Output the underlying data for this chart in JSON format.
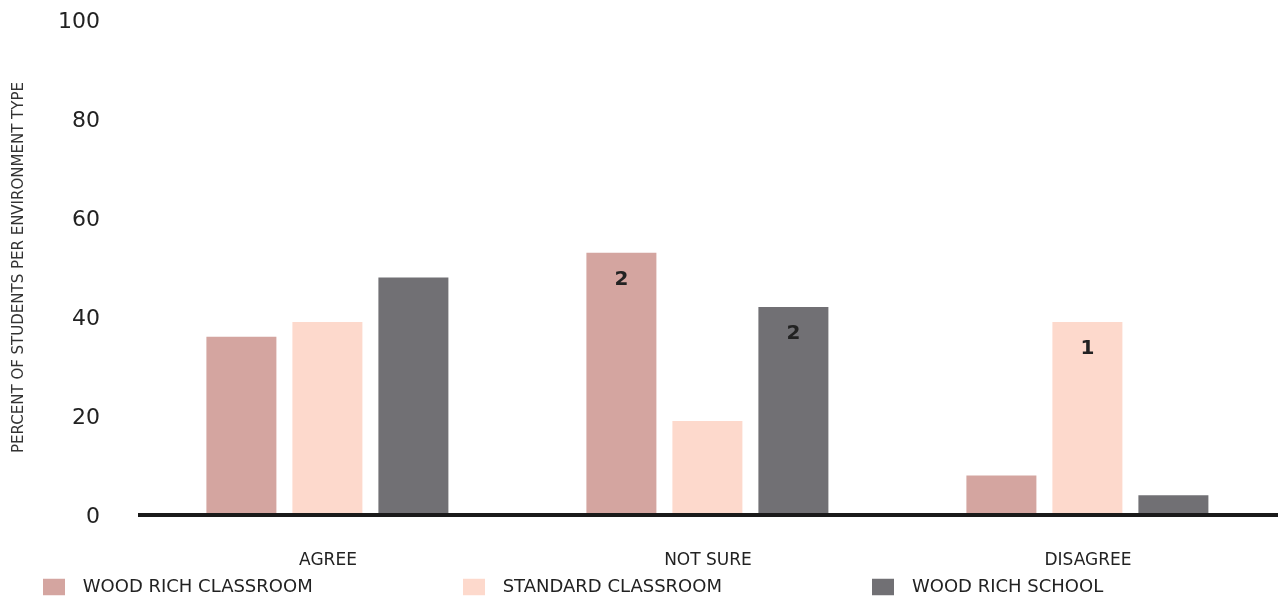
{
  "chart_data": {
    "type": "bar",
    "ylabel": "PERCENT OF STUDENTS PER ENVIRONMENT TYPE",
    "categories": [
      "AGREE",
      "NOT SURE",
      "DISAGREE"
    ],
    "series": [
      {
        "name": "WOOD RICH CLASSROOM",
        "color": "#d4a5a0",
        "values": [
          36,
          53,
          8
        ]
      },
      {
        "name": "STANDARD CLASSROOM",
        "color": "#fdd9cc",
        "values": [
          39,
          19,
          39
        ]
      },
      {
        "name": "WOOD RICH SCHOOL",
        "color": "#717074",
        "values": [
          48,
          42,
          4
        ]
      }
    ],
    "ylim": [
      0,
      100
    ],
    "yticks": [
      0,
      20,
      40,
      60,
      80,
      100
    ],
    "grid": false,
    "legend": "bottom",
    "annotations": [
      {
        "text": "2",
        "y": 53
      },
      {
        "text": "2",
        "y": 42
      },
      {
        "text": "1",
        "x": "DISAGREE",
        "y": 39
      }
    ]
  }
}
